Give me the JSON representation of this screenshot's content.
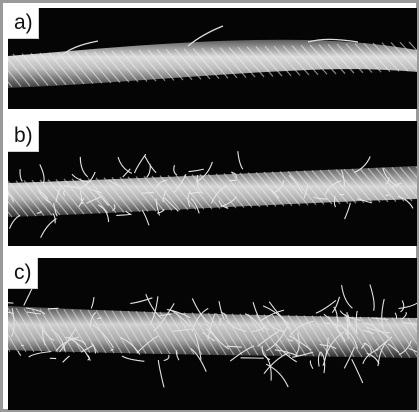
{
  "panels": [
    {
      "label": "a)",
      "description": "yarn"
    },
    {
      "label": "b)",
      "description": "yarn"
    },
    {
      "label": "c)",
      "description": "yarn"
    }
  ],
  "colors": {
    "border": "#9a9a9a",
    "background": "#050505",
    "fiber": "#e8e8e8"
  }
}
